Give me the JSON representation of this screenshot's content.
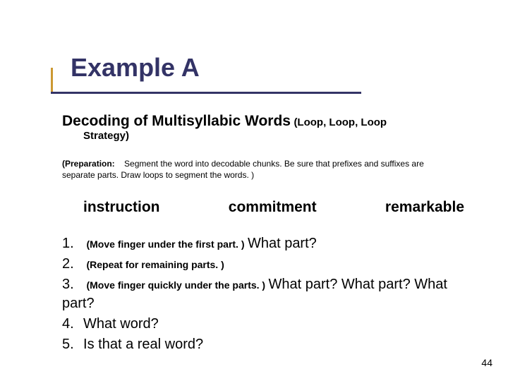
{
  "title": "Example A",
  "subtitle": {
    "main": "Decoding of Multisyllabic Words",
    "tail": "  (Loop, Loop, Loop",
    "strategy": "Strategy)"
  },
  "prep": {
    "label": "(Preparation:",
    "text": "Segment the word into decodable chunks.  Be sure that prefixes  and suffixes are separate parts.  Draw loops to segment the words. )"
  },
  "words": {
    "w1": "instruction",
    "w2": "commitment",
    "w3": "remarkable"
  },
  "steps": {
    "s1": {
      "num": "1.",
      "paren": "(Move finger under the first part. )",
      "ask": " What part?"
    },
    "s2": {
      "num": "2.",
      "paren": "(Repeat for remaining parts. )",
      "ask": ""
    },
    "s3": {
      "num": "3.",
      "paren": "(Move finger quickly under the parts. )",
      "ask": " What part?  What part? What part?"
    },
    "s4": {
      "num": "4.",
      "paren": "",
      "ask": "What word?"
    },
    "s5": {
      "num": "5.",
      "paren": "",
      "ask": "Is that a real word?"
    }
  },
  "pageNumber": "44",
  "colors": {
    "titleColor": "#333366",
    "underlineColor": "#333366",
    "tickColor": "#cc9933",
    "background": "#ffffff"
  }
}
